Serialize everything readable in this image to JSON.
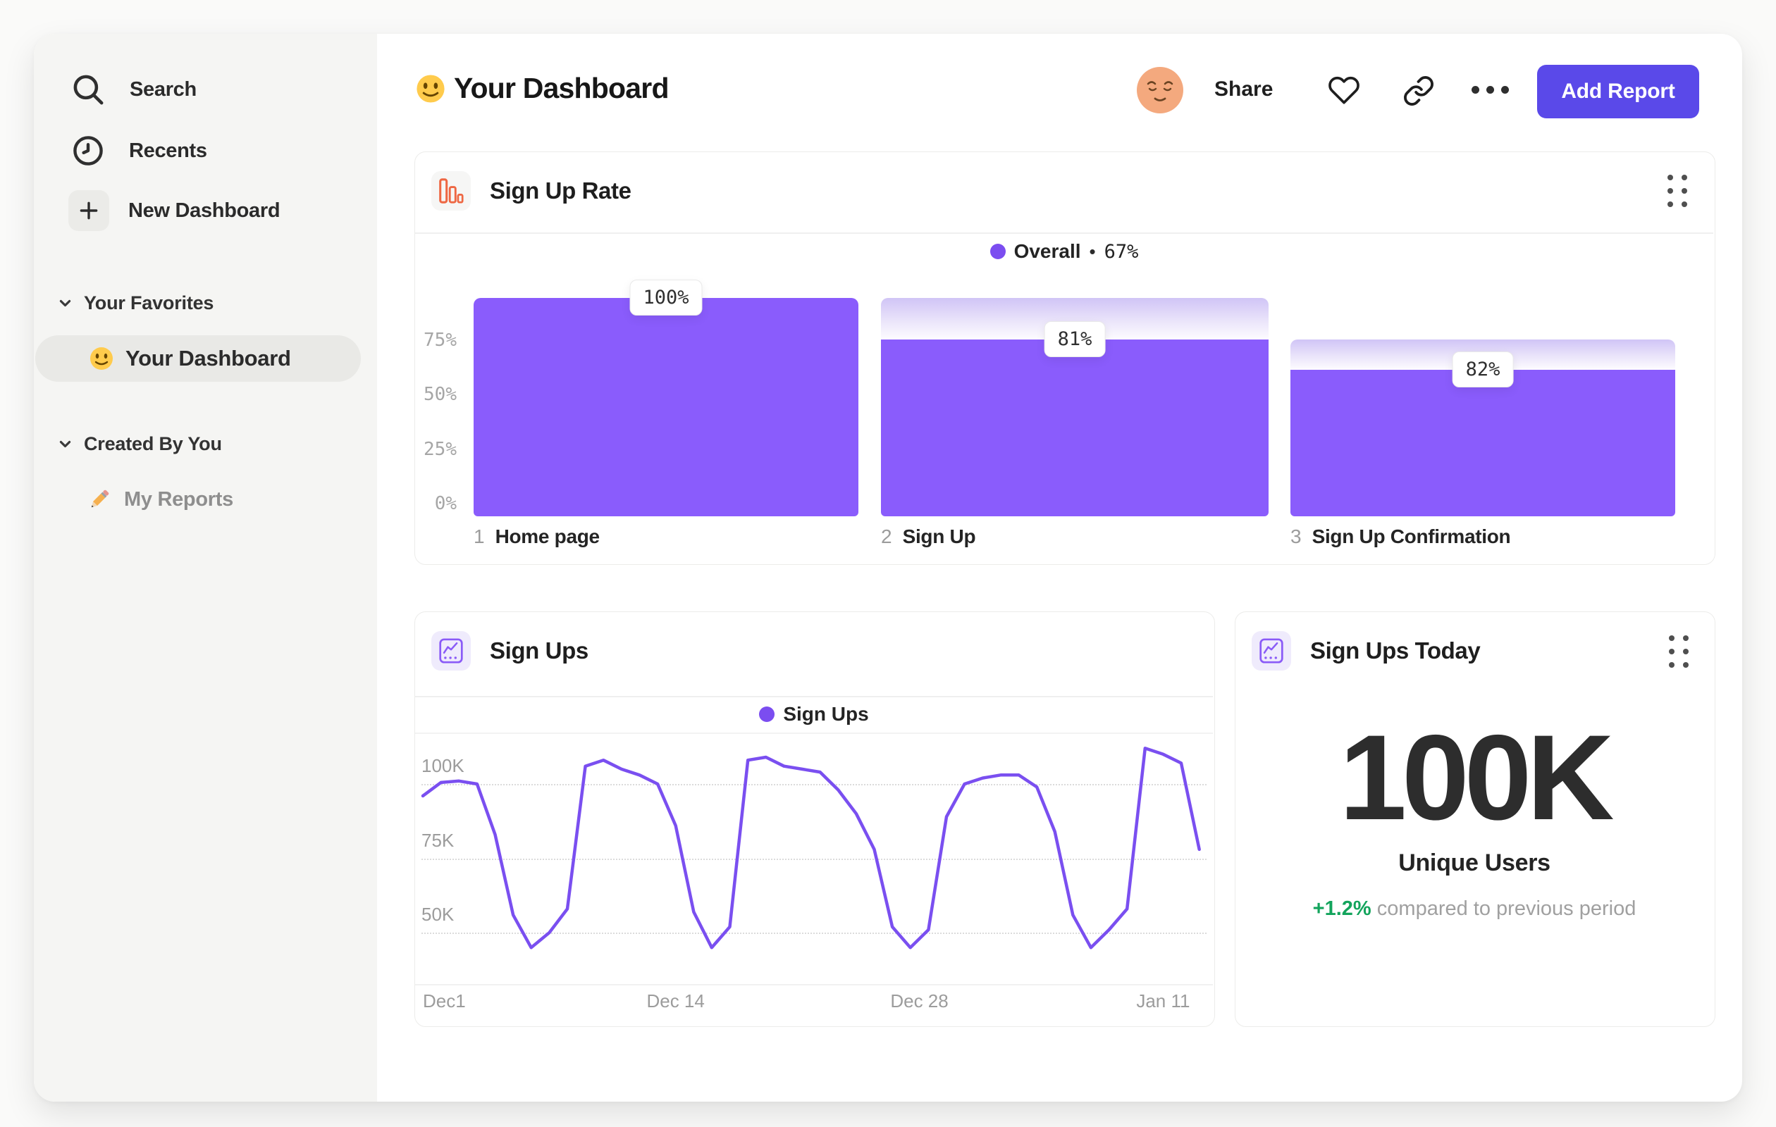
{
  "colors": {
    "bar_purple": "#8A5CFC",
    "line_purple": "#7A4FF0",
    "legend_dot": "#7B4DF0",
    "button_purple": "#5A49E9",
    "icon_orange": "#EE6743",
    "icon_purple": "#8A5BF7",
    "green": "#13A45C",
    "sidebar_bg": "#F5F5F3",
    "active_pill": "#E9E9E6"
  },
  "sidebar": {
    "items": [
      {
        "label": "Search"
      },
      {
        "label": "Recents"
      },
      {
        "label": "New Dashboard"
      }
    ],
    "sections": [
      {
        "label": "Your Favorites",
        "items": [
          {
            "label": "Your Dashboard"
          }
        ]
      },
      {
        "label": "Created By You",
        "items": [
          {
            "label": "My Reports"
          }
        ]
      }
    ]
  },
  "header": {
    "title": "Your Dashboard",
    "share_label": "Share",
    "add_report_label": "Add Report"
  },
  "cards": {
    "signup_rate": {
      "title": "Sign Up Rate",
      "legend_name": "Overall",
      "legend_sep": "•",
      "legend_value": "67%"
    },
    "sign_ups": {
      "title": "Sign Ups",
      "legend_name": "Sign Ups"
    },
    "sign_ups_today": {
      "title": "Sign Ups Today",
      "value": "100K",
      "sublabel": "Unique Users",
      "delta": "+1.2%",
      "delta_note": "compared to previous period"
    }
  },
  "chart_data": [
    {
      "id": "signup_rate_funnel",
      "type": "bar",
      "title": "Sign Up Rate",
      "legend": {
        "name": "Overall",
        "value_pct": 67
      },
      "categories": [
        "Home page",
        "Sign Up",
        "Sign Up Confirmation"
      ],
      "step_numbers": [
        "1",
        "2",
        "3"
      ],
      "values_abs_pct": [
        100,
        81,
        67
      ],
      "step_conversion_labels": [
        "100%",
        "81%",
        "82%"
      ],
      "ytick_labels": [
        "75%",
        "50%",
        "25%",
        "0%"
      ],
      "yticks_pct": [
        75,
        50,
        25,
        0
      ],
      "ylim": [
        0,
        100
      ],
      "grid": false,
      "legend_position": "top-center"
    },
    {
      "id": "sign_ups_line",
      "type": "line",
      "title": "Sign Ups",
      "legend": [
        "Sign Ups"
      ],
      "xlabel": "",
      "ylabel": "",
      "ylim_k": [
        40,
        115
      ],
      "grid": "dotted-horizontal",
      "yticks": [
        {
          "label": "100K",
          "value_k": 100
        },
        {
          "label": "75K",
          "value_k": 75
        },
        {
          "label": "50K",
          "value_k": 50
        }
      ],
      "x_ticks": [
        {
          "label": "Dec1",
          "day": 0,
          "align": "left"
        },
        {
          "label": "Dec 14",
          "day": 14,
          "align": "center"
        },
        {
          "label": "Dec 28",
          "day": 27.5,
          "align": "center"
        },
        {
          "label": "Jan 11",
          "day": 41,
          "align": "center"
        }
      ],
      "series": [
        {
          "name": "Sign Ups",
          "unit": "thousands_of_users",
          "values_k": [
            96,
            100.5,
            101,
            100,
            83,
            56,
            45,
            50,
            58,
            106,
            108,
            105,
            103,
            100,
            86,
            57,
            45,
            52,
            108,
            109,
            106,
            105,
            104,
            98,
            90,
            78,
            52,
            45,
            51,
            89,
            100,
            102,
            103,
            103,
            99,
            84,
            56,
            45,
            51,
            58,
            112,
            110,
            107,
            78
          ]
        }
      ]
    },
    {
      "id": "sign_ups_today",
      "type": "table",
      "title": "Sign Ups Today",
      "metric": {
        "value": "100K",
        "label": "Unique Users",
        "delta_pct": 1.2,
        "delta_direction": "up",
        "comparison": "compared to previous period"
      }
    }
  ]
}
